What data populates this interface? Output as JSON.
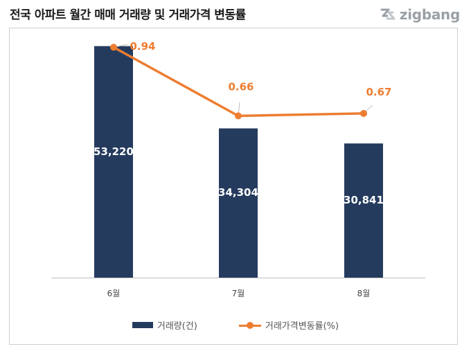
{
  "title": "전국 아파트 월간 매매 거래량 및 거래가격 변동률",
  "logo": {
    "text": "zigbang",
    "icon": "zigbang-logo-icon",
    "color": "#9aa0a6"
  },
  "colors": {
    "bar": "#253b5e",
    "line": "#ed7d31",
    "axis": "#bfbfbf"
  },
  "chart_data": {
    "type": "bar+line",
    "categories": [
      "6월",
      "7월",
      "8월"
    ],
    "series": [
      {
        "name": "거래량(건)",
        "type": "bar",
        "values": [
          53220,
          34304,
          30841
        ],
        "labels": [
          "53,220",
          "34,304",
          "30,841"
        ]
      },
      {
        "name": "거래가격변동률(%)",
        "type": "line",
        "values": [
          0.94,
          0.66,
          0.67
        ],
        "labels": [
          "0.94",
          "0.66",
          "0.67"
        ]
      }
    ],
    "ylim_bar": [
      0,
      60000
    ],
    "ylim_line": [
      0,
      1.0
    ],
    "grid": false,
    "legend": "bottom"
  }
}
